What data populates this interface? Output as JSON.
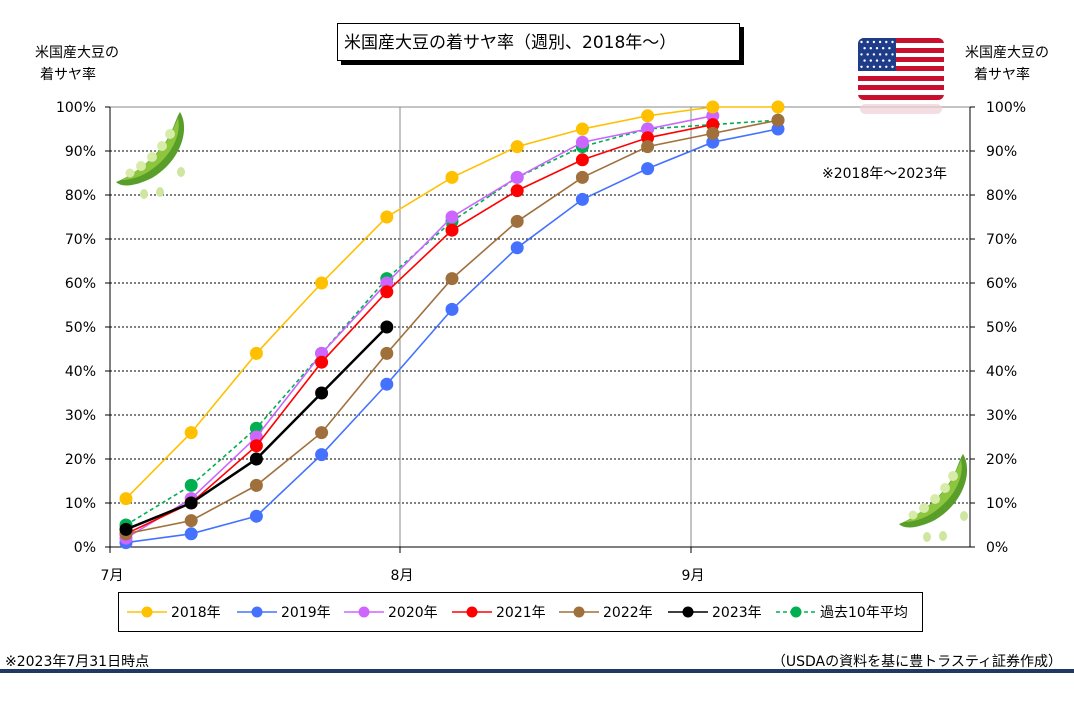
{
  "title": "米国産大豆の着サヤ率（週別、2018年～）",
  "left_axis_title": [
    "米国産大豆の",
    "着サヤ率"
  ],
  "right_axis_title": [
    "米国産大豆の",
    "着サヤ率"
  ],
  "note_period": "※2018年～2023年",
  "footer_left": "※2023年7月31日時点",
  "footer_right": "（USDAの資料を基に豊トラスティ証券作成）",
  "icons": {
    "flag": "us-flag-icon",
    "pea_top": "soybean-pod-icon",
    "pea_bottom": "soybean-pod-icon"
  },
  "chart_data": {
    "type": "line",
    "x_ticks": [
      "7月",
      "8月",
      "9月"
    ],
    "y_ticks": [
      "0%",
      "10%",
      "20%",
      "30%",
      "40%",
      "50%",
      "60%",
      "70%",
      "80%",
      "90%",
      "100%"
    ],
    "ylim": [
      0,
      100
    ],
    "x_unit": "week index from early July",
    "series": [
      {
        "name": "2018年",
        "color": "#ffc000",
        "dashed": false,
        "values": [
          11,
          26,
          44,
          60,
          75,
          84,
          91,
          95,
          98,
          100,
          100
        ]
      },
      {
        "name": "2019年",
        "color": "#4472ff",
        "dashed": false,
        "values": [
          1,
          3,
          7,
          21,
          37,
          54,
          68,
          79,
          86,
          92,
          95
        ]
      },
      {
        "name": "2020年",
        "color": "#cc66ff",
        "dashed": false,
        "values": [
          2,
          11,
          25,
          44,
          60,
          75,
          84,
          92,
          95,
          98
        ]
      },
      {
        "name": "2021年",
        "color": "#ff0000",
        "dashed": false,
        "values": [
          3,
          10,
          23,
          42,
          58,
          72,
          81,
          88,
          93,
          96
        ]
      },
      {
        "name": "2022年",
        "color": "#a0703c",
        "dashed": false,
        "values": [
          3,
          6,
          14,
          26,
          44,
          61,
          74,
          84,
          91,
          94,
          97
        ]
      },
      {
        "name": "2023年",
        "color": "#000000",
        "dashed": false,
        "values": [
          4,
          10,
          20,
          35,
          50
        ]
      },
      {
        "name": "過去10年平均",
        "color": "#00b050",
        "dashed": true,
        "values": [
          5,
          14,
          27,
          44,
          61,
          74,
          84,
          91,
          95,
          96,
          97
        ]
      }
    ]
  }
}
